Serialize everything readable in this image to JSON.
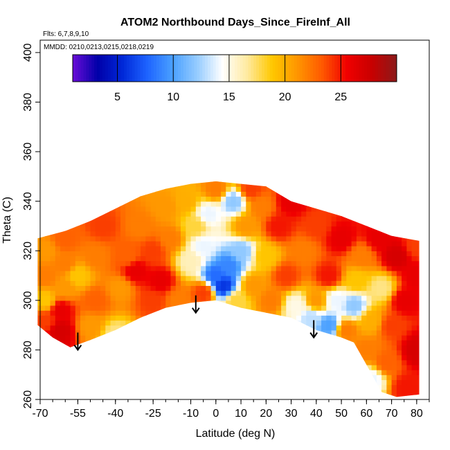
{
  "chart_data": {
    "type": "heatmap",
    "title": "ATOM2 Northbound Days_Since_FireInf_All",
    "subtitle_flights": "Flts: 6,7,8,9,10",
    "subtitle_dates": "MMDD: 0210,0213,0215,0218,0219",
    "xlabel": "Latitude (deg N)",
    "ylabel": "Theta (C)",
    "xlim": [
      -70,
      85
    ],
    "ylim": [
      260,
      405
    ],
    "x_ticks": [
      -70,
      -55,
      -40,
      -25,
      -10,
      0,
      10,
      20,
      30,
      40,
      50,
      60,
      70,
      80
    ],
    "x_tick_labels": [
      "-70",
      "-55",
      "-40",
      "-25",
      "-10",
      "0",
      "10",
      "20",
      "30",
      "40",
      "50",
      "60",
      "70",
      "80"
    ],
    "y_ticks": [
      260,
      280,
      300,
      320,
      340,
      360,
      380,
      400
    ],
    "y_tick_labels": [
      "260",
      "280",
      "300",
      "320",
      "340",
      "360",
      "380",
      "400"
    ],
    "colorbar": {
      "range": [
        1,
        30
      ],
      "ticks": [
        5,
        10,
        15,
        20,
        25
      ],
      "tick_labels": [
        "5",
        "10",
        "15",
        "20",
        "25"
      ],
      "colors": [
        "#6a0dd8",
        "#0000a8",
        "#0028d8",
        "#1e64ff",
        "#4aa0ff",
        "#96ccff",
        "#ffffff",
        "#ffeaa0",
        "#ffc800",
        "#ff9600",
        "#ff5a00",
        "#f00000",
        "#c80000",
        "#8b1a1a"
      ]
    },
    "arrows": [
      {
        "lat": -55,
        "theta": 287
      },
      {
        "lat": -8,
        "theta": 302
      },
      {
        "lat": 39,
        "theta": 292
      }
    ],
    "boundary_top": [
      {
        "lat": -71,
        "theta": 325
      },
      {
        "lat": -60,
        "theta": 328
      },
      {
        "lat": -50,
        "theta": 332
      },
      {
        "lat": -40,
        "theta": 337
      },
      {
        "lat": -30,
        "theta": 342
      },
      {
        "lat": -20,
        "theta": 345
      },
      {
        "lat": -10,
        "theta": 347
      },
      {
        "lat": 0,
        "theta": 348
      },
      {
        "lat": 10,
        "theta": 347
      },
      {
        "lat": 20,
        "theta": 346
      },
      {
        "lat": 30,
        "theta": 340
      },
      {
        "lat": 40,
        "theta": 337
      },
      {
        "lat": 50,
        "theta": 334
      },
      {
        "lat": 60,
        "theta": 330
      },
      {
        "lat": 70,
        "theta": 326
      },
      {
        "lat": 81,
        "theta": 324
      }
    ],
    "boundary_bottom": [
      {
        "lat": -71,
        "theta": 290
      },
      {
        "lat": -65,
        "theta": 285
      },
      {
        "lat": -58,
        "theta": 281
      },
      {
        "lat": -50,
        "theta": 284
      },
      {
        "lat": -40,
        "theta": 288
      },
      {
        "lat": -30,
        "theta": 293
      },
      {
        "lat": -20,
        "theta": 297
      },
      {
        "lat": -10,
        "theta": 299
      },
      {
        "lat": 0,
        "theta": 300
      },
      {
        "lat": 10,
        "theta": 297
      },
      {
        "lat": 20,
        "theta": 295
      },
      {
        "lat": 30,
        "theta": 293
      },
      {
        "lat": 40,
        "theta": 288
      },
      {
        "lat": 50,
        "theta": 285
      },
      {
        "lat": 55,
        "theta": 283
      },
      {
        "lat": 60,
        "theta": 274
      },
      {
        "lat": 66,
        "theta": 263
      },
      {
        "lat": 72,
        "theta": 261
      },
      {
        "lat": 81,
        "theta": 262
      }
    ],
    "value_anchors": [
      {
        "lat": -68,
        "theta": 292,
        "v": 24
      },
      {
        "lat": -68,
        "theta": 300,
        "v": 19
      },
      {
        "lat": -68,
        "theta": 310,
        "v": 22
      },
      {
        "lat": -68,
        "theta": 320,
        "v": 21
      },
      {
        "lat": -62,
        "theta": 288,
        "v": 27
      },
      {
        "lat": -62,
        "theta": 296,
        "v": 26
      },
      {
        "lat": -60,
        "theta": 305,
        "v": 21
      },
      {
        "lat": -60,
        "theta": 315,
        "v": 22
      },
      {
        "lat": -60,
        "theta": 325,
        "v": 23
      },
      {
        "lat": -55,
        "theta": 310,
        "v": 19
      },
      {
        "lat": -50,
        "theta": 290,
        "v": 21
      },
      {
        "lat": -48,
        "theta": 300,
        "v": 23
      },
      {
        "lat": -48,
        "theta": 318,
        "v": 22
      },
      {
        "lat": -45,
        "theta": 330,
        "v": 24
      },
      {
        "lat": -40,
        "theta": 286,
        "v": 17
      },
      {
        "lat": -38,
        "theta": 305,
        "v": 21
      },
      {
        "lat": -35,
        "theta": 318,
        "v": 23
      },
      {
        "lat": -32,
        "theta": 312,
        "v": 26
      },
      {
        "lat": -30,
        "theta": 330,
        "v": 22
      },
      {
        "lat": -25,
        "theta": 300,
        "v": 24
      },
      {
        "lat": -25,
        "theta": 320,
        "v": 24
      },
      {
        "lat": -22,
        "theta": 308,
        "v": 26
      },
      {
        "lat": -20,
        "theta": 338,
        "v": 21
      },
      {
        "lat": -18,
        "theta": 325,
        "v": 22
      },
      {
        "lat": -15,
        "theta": 300,
        "v": 22
      },
      {
        "lat": -12,
        "theta": 340,
        "v": 20
      },
      {
        "lat": -10,
        "theta": 316,
        "v": 16
      },
      {
        "lat": -8,
        "theta": 330,
        "v": 18
      },
      {
        "lat": -5,
        "theta": 303,
        "v": 24
      },
      {
        "lat": -5,
        "theta": 322,
        "v": 14
      },
      {
        "lat": -3,
        "theta": 335,
        "v": 14
      },
      {
        "lat": 0,
        "theta": 310,
        "v": 8
      },
      {
        "lat": 0,
        "theta": 345,
        "v": 22
      },
      {
        "lat": 3,
        "theta": 306,
        "v": 6
      },
      {
        "lat": 5,
        "theta": 314,
        "v": 9
      },
      {
        "lat": 7,
        "theta": 340,
        "v": 12
      },
      {
        "lat": 8,
        "theta": 300,
        "v": 18
      },
      {
        "lat": 10,
        "theta": 320,
        "v": 12
      },
      {
        "lat": 12,
        "theta": 330,
        "v": 21
      },
      {
        "lat": 14,
        "theta": 345,
        "v": 24
      },
      {
        "lat": 15,
        "theta": 306,
        "v": 21
      },
      {
        "lat": 18,
        "theta": 338,
        "v": 22
      },
      {
        "lat": 20,
        "theta": 318,
        "v": 19
      },
      {
        "lat": 22,
        "theta": 300,
        "v": 22
      },
      {
        "lat": 25,
        "theta": 330,
        "v": 25
      },
      {
        "lat": 28,
        "theta": 310,
        "v": 24
      },
      {
        "lat": 30,
        "theta": 340,
        "v": 26
      },
      {
        "lat": 32,
        "theta": 298,
        "v": 15
      },
      {
        "lat": 35,
        "theta": 320,
        "v": 22
      },
      {
        "lat": 38,
        "theta": 293,
        "v": 13
      },
      {
        "lat": 40,
        "theta": 300,
        "v": 21
      },
      {
        "lat": 40,
        "theta": 330,
        "v": 24
      },
      {
        "lat": 45,
        "theta": 310,
        "v": 25
      },
      {
        "lat": 45,
        "theta": 290,
        "v": 10
      },
      {
        "lat": 48,
        "theta": 300,
        "v": 14
      },
      {
        "lat": 50,
        "theta": 325,
        "v": 26
      },
      {
        "lat": 52,
        "theta": 288,
        "v": 22
      },
      {
        "lat": 55,
        "theta": 298,
        "v": 12
      },
      {
        "lat": 56,
        "theta": 308,
        "v": 19
      },
      {
        "lat": 58,
        "theta": 318,
        "v": 22
      },
      {
        "lat": 60,
        "theta": 280,
        "v": 22
      },
      {
        "lat": 62,
        "theta": 292,
        "v": 20
      },
      {
        "lat": 62,
        "theta": 268,
        "v": 14
      },
      {
        "lat": 65,
        "theta": 325,
        "v": 26
      },
      {
        "lat": 66,
        "theta": 305,
        "v": 17
      },
      {
        "lat": 68,
        "theta": 275,
        "v": 23
      },
      {
        "lat": 70,
        "theta": 290,
        "v": 24
      },
      {
        "lat": 72,
        "theta": 318,
        "v": 27
      },
      {
        "lat": 75,
        "theta": 300,
        "v": 26
      },
      {
        "lat": 76,
        "theta": 265,
        "v": 25
      },
      {
        "lat": 80,
        "theta": 280,
        "v": 27
      },
      {
        "lat": 80,
        "theta": 310,
        "v": 26
      },
      {
        "lat": 80,
        "theta": 322,
        "v": 24
      }
    ],
    "grid": false
  }
}
